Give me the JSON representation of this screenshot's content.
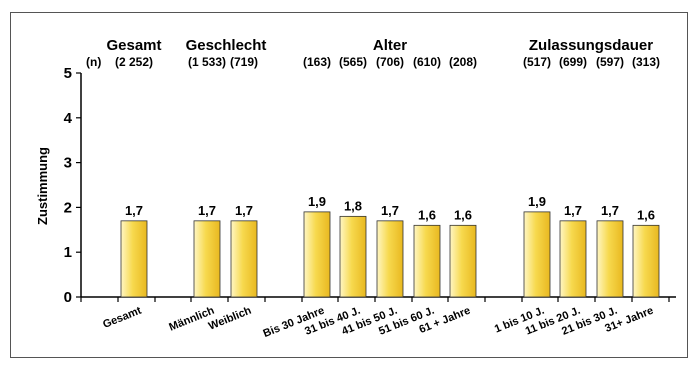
{
  "chart_data": {
    "type": "bar",
    "ylabel": "Zustimmung",
    "ylim": [
      0,
      5
    ],
    "yticks": [
      0,
      1,
      2,
      3,
      4,
      5
    ],
    "bar_color": "#f5d24a",
    "n_prefix": "(n)",
    "groups": [
      {
        "title": "Gesamt",
        "categories": [
          "Gesamt"
        ],
        "n": [
          "(2 252)"
        ],
        "values": [
          1.7
        ],
        "labels": [
          "1,7"
        ]
      },
      {
        "title": "Geschlecht",
        "categories": [
          "Männlich",
          "Weiblich"
        ],
        "n": [
          "(1 533)",
          "(719)"
        ],
        "values": [
          1.7,
          1.7
        ],
        "labels": [
          "1,7",
          "1,7"
        ]
      },
      {
        "title": "Alter",
        "categories": [
          "Bis 30 Jahre",
          "31 bis 40  J.",
          "41 bis 50 J.",
          "51 bis 60 J.",
          "61 + Jahre"
        ],
        "n": [
          "(163)",
          "(565)",
          "(706)",
          "(610)",
          "(208)"
        ],
        "values": [
          1.9,
          1.8,
          1.7,
          1.6,
          1.6
        ],
        "labels": [
          "1,9",
          "1,8",
          "1,7",
          "1,6",
          "1,6"
        ]
      },
      {
        "title": "Zulassungsdauer",
        "categories": [
          "1 bis 10 J.",
          "11 bis 20 J.",
          "21 bis 30 J.",
          "31+  Jahre"
        ],
        "n": [
          "(517)",
          "(699)",
          "(597)",
          "(313)"
        ],
        "values": [
          1.9,
          1.7,
          1.7,
          1.6
        ],
        "labels": [
          "1,9",
          "1,7",
          "1,7",
          "1,6"
        ]
      }
    ]
  }
}
